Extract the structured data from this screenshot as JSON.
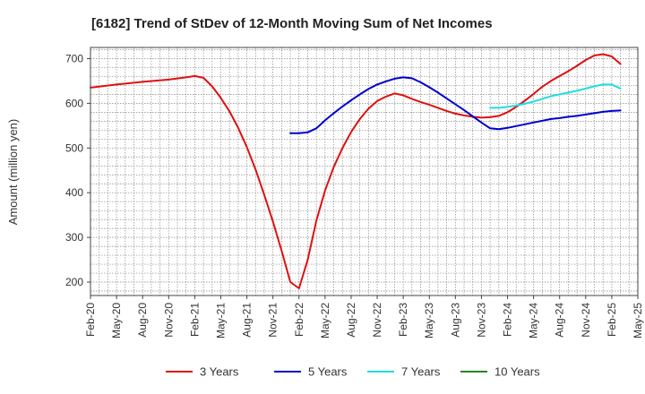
{
  "chart_data": {
    "type": "line",
    "title": "[6182]  Trend of StDev of 12-Month Moving Sum of Net Incomes",
    "xlabel": "",
    "ylabel": "Amount (million yen)",
    "ylim": [
      170,
      725
    ],
    "yticks": [
      200,
      300,
      400,
      500,
      600,
      700
    ],
    "x_range": [
      "2020-02",
      "2025-05"
    ],
    "x_tick_labels": [
      "Feb-20",
      "May-20",
      "Aug-20",
      "Nov-20",
      "Feb-21",
      "May-21",
      "Aug-21",
      "Nov-21",
      "Feb-22",
      "May-22",
      "Aug-22",
      "Nov-22",
      "Feb-23",
      "May-23",
      "Aug-23",
      "Nov-23",
      "Feb-24",
      "May-24",
      "Aug-24",
      "Nov-24",
      "Feb-25",
      "May-25"
    ],
    "x_tick_months": [
      "2020-02",
      "2020-05",
      "2020-08",
      "2020-11",
      "2021-02",
      "2021-05",
      "2021-08",
      "2021-11",
      "2022-02",
      "2022-05",
      "2022-08",
      "2022-11",
      "2023-02",
      "2023-05",
      "2023-08",
      "2023-11",
      "2024-02",
      "2024-05",
      "2024-08",
      "2024-11",
      "2025-02",
      "2025-05"
    ],
    "grid": true,
    "legend_position": "bottom",
    "series": [
      {
        "name": "3 Years",
        "color": "#dd1111",
        "points": [
          [
            "2020-02",
            635
          ],
          [
            "2020-05",
            642
          ],
          [
            "2020-08",
            648
          ],
          [
            "2020-11",
            653
          ],
          [
            "2021-01",
            658
          ],
          [
            "2021-02",
            661
          ],
          [
            "2021-03",
            657
          ],
          [
            "2021-04",
            638
          ],
          [
            "2021-05",
            612
          ],
          [
            "2021-06",
            582
          ],
          [
            "2021-07",
            545
          ],
          [
            "2021-08",
            502
          ],
          [
            "2021-09",
            452
          ],
          [
            "2021-10",
            395
          ],
          [
            "2021-11",
            335
          ],
          [
            "2021-12",
            270
          ],
          [
            "2022-01",
            200
          ],
          [
            "2022-02",
            186
          ],
          [
            "2022-03",
            250
          ],
          [
            "2022-04",
            338
          ],
          [
            "2022-05",
            405
          ],
          [
            "2022-06",
            458
          ],
          [
            "2022-07",
            500
          ],
          [
            "2022-08",
            536
          ],
          [
            "2022-09",
            565
          ],
          [
            "2022-10",
            588
          ],
          [
            "2022-11",
            605
          ],
          [
            "2022-12",
            615
          ],
          [
            "2023-01",
            622
          ],
          [
            "2023-02",
            618
          ],
          [
            "2023-03",
            610
          ],
          [
            "2023-04",
            603
          ],
          [
            "2023-05",
            597
          ],
          [
            "2023-06",
            590
          ],
          [
            "2023-07",
            583
          ],
          [
            "2023-08",
            577
          ],
          [
            "2023-09",
            573
          ],
          [
            "2023-10",
            570
          ],
          [
            "2023-11",
            568
          ],
          [
            "2023-12",
            569
          ],
          [
            "2024-01",
            572
          ],
          [
            "2024-02",
            580
          ],
          [
            "2024-03",
            592
          ],
          [
            "2024-04",
            606
          ],
          [
            "2024-05",
            621
          ],
          [
            "2024-06",
            637
          ],
          [
            "2024-07",
            650
          ],
          [
            "2024-08",
            661
          ],
          [
            "2024-09",
            672
          ],
          [
            "2024-10",
            684
          ],
          [
            "2024-11",
            697
          ],
          [
            "2024-12",
            707
          ],
          [
            "2025-01",
            710
          ],
          [
            "2025-02",
            705
          ],
          [
            "2025-03",
            688
          ]
        ]
      },
      {
        "name": "5 Years",
        "color": "#0000cc",
        "points": [
          [
            "2022-01",
            533
          ],
          [
            "2022-02",
            533
          ],
          [
            "2022-03",
            535
          ],
          [
            "2022-04",
            544
          ],
          [
            "2022-05",
            562
          ],
          [
            "2022-06",
            578
          ],
          [
            "2022-07",
            593
          ],
          [
            "2022-08",
            607
          ],
          [
            "2022-09",
            620
          ],
          [
            "2022-10",
            632
          ],
          [
            "2022-11",
            642
          ],
          [
            "2022-12",
            649
          ],
          [
            "2023-01",
            655
          ],
          [
            "2023-02",
            658
          ],
          [
            "2023-03",
            656
          ],
          [
            "2023-04",
            647
          ],
          [
            "2023-05",
            636
          ],
          [
            "2023-06",
            624
          ],
          [
            "2023-07",
            611
          ],
          [
            "2023-08",
            598
          ],
          [
            "2023-09",
            585
          ],
          [
            "2023-10",
            571
          ],
          [
            "2023-11",
            557
          ],
          [
            "2023-12",
            544
          ],
          [
            "2024-01",
            542
          ],
          [
            "2024-02",
            545
          ],
          [
            "2024-03",
            549
          ],
          [
            "2024-04",
            553
          ],
          [
            "2024-05",
            557
          ],
          [
            "2024-06",
            561
          ],
          [
            "2024-07",
            565
          ],
          [
            "2024-08",
            567
          ],
          [
            "2024-09",
            570
          ],
          [
            "2024-10",
            572
          ],
          [
            "2024-11",
            575
          ],
          [
            "2024-12",
            578
          ],
          [
            "2025-01",
            581
          ],
          [
            "2025-02",
            583
          ],
          [
            "2025-03",
            584
          ]
        ]
      },
      {
        "name": "7 Years",
        "color": "#22dddd",
        "points": [
          [
            "2023-12",
            590
          ],
          [
            "2024-01",
            590
          ],
          [
            "2024-02",
            592
          ],
          [
            "2024-03",
            595
          ],
          [
            "2024-04",
            599
          ],
          [
            "2024-05",
            604
          ],
          [
            "2024-06",
            610
          ],
          [
            "2024-07",
            616
          ],
          [
            "2024-08",
            620
          ],
          [
            "2024-09",
            624
          ],
          [
            "2024-10",
            628
          ],
          [
            "2024-11",
            633
          ],
          [
            "2024-12",
            638
          ],
          [
            "2025-01",
            642
          ],
          [
            "2025-02",
            642
          ],
          [
            "2025-03",
            633
          ]
        ]
      },
      {
        "name": "10 Years",
        "color": "#228822",
        "points": []
      }
    ]
  }
}
